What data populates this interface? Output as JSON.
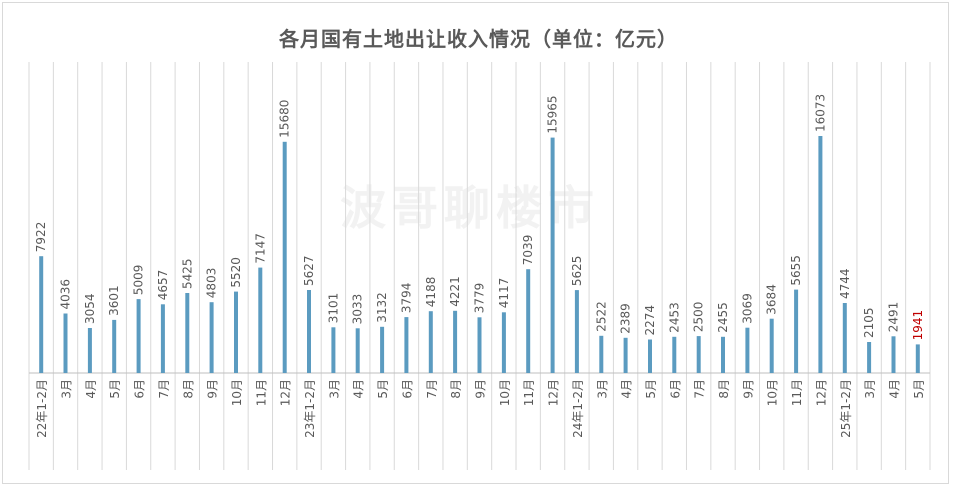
{
  "chart_data": {
    "type": "bar",
    "title": "各月国有土地出让收入情况（单位：亿元）",
    "watermark": "波哥聊楼市",
    "categories": [
      "22年1-2月",
      "3月",
      "4月",
      "5月",
      "6月",
      "7月",
      "8月",
      "9月",
      "10月",
      "11月",
      "12月",
      "23年1-2月",
      "3月",
      "4月",
      "5月",
      "6月",
      "7月",
      "8月",
      "9月",
      "10月",
      "11月",
      "12月",
      "24年1-2月",
      "3月",
      "4月",
      "5月",
      "6月",
      "7月",
      "8月",
      "9月",
      "10月",
      "11月",
      "12月",
      "25年1-2月",
      "3月",
      "4月",
      "5月"
    ],
    "values": [
      7922,
      4036,
      3054,
      3601,
      5009,
      4657,
      5425,
      4803,
      5520,
      7147,
      15680,
      5627,
      3101,
      3033,
      3132,
      3794,
      4188,
      4221,
      3779,
      4117,
      7039,
      15965,
      5625,
      2522,
      2389,
      2274,
      2453,
      2500,
      2455,
      3069,
      3684,
      5655,
      16073,
      4744,
      2105,
      2491,
      1941
    ],
    "ylim": [
      0,
      16073
    ],
    "grid": "vertical",
    "colors": {
      "bar": "#5b9bc0",
      "highlight_label": "#c00000",
      "label": "#595959",
      "grid": "#d9d9d9"
    },
    "highlight_index": 36
  }
}
